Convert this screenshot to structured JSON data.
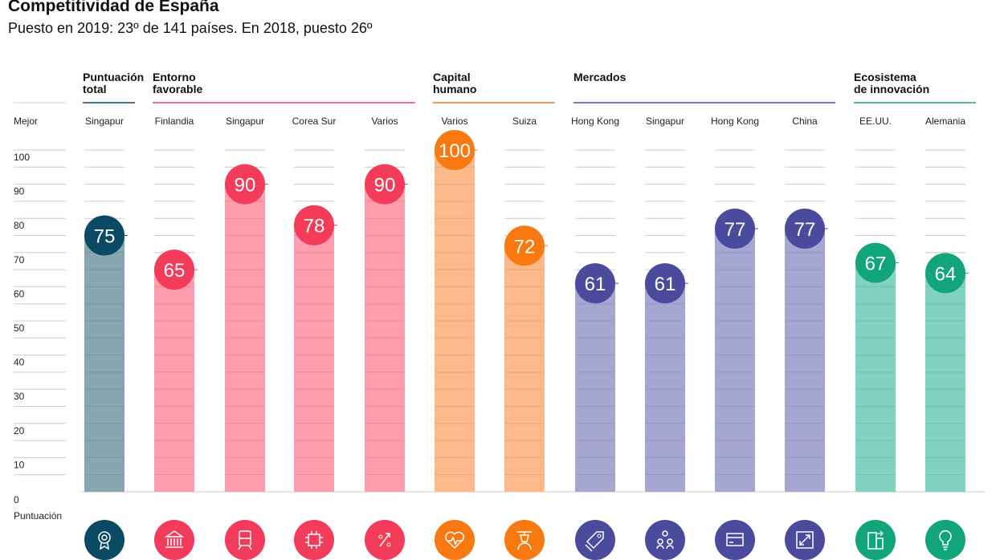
{
  "chart_data": {
    "type": "bar",
    "title": "Competitividad de España",
    "subtitle": "Puesto en 2019: 23º de 141 países. En 2018, puesto 26º",
    "ylabel_top": "Mejor",
    "ylabel_bottom": "Puntuación",
    "ylim": [
      0,
      100
    ],
    "yticks": [
      0,
      10,
      20,
      30,
      40,
      50,
      60,
      70,
      80,
      90,
      100
    ],
    "groups": [
      {
        "label": [
          "Puntuación",
          "total"
        ],
        "color": "#0b4a63",
        "bar_color": "#87a7b2",
        "count": 1
      },
      {
        "label": [
          "Entorno",
          "favorable"
        ],
        "color": "#f23c5a",
        "bar_color": "#ff9daf",
        "count": 4
      },
      {
        "label": [
          "Capital",
          "humano"
        ],
        "color": "#f7790f",
        "bar_color": "#fdb98a",
        "count": 2
      },
      {
        "label": [
          "Mercados"
        ],
        "color": "#4b4b9e",
        "bar_color": "#a6a6d3",
        "count": 4
      },
      {
        "label": [
          "Ecosistema",
          "de innovación"
        ],
        "color": "#13a57a",
        "bar_color": "#80d3c0",
        "count": 2
      }
    ],
    "categories": [
      "Singapur",
      "Finlandia",
      "Singapur",
      "Corea Sur",
      "Varios",
      "Varios",
      "Suiza",
      "Hong Kong",
      "Singapur",
      "Hong Kong",
      "China",
      "EE.UU.",
      "Alemania"
    ],
    "values": [
      75,
      65,
      90,
      78,
      90,
      100,
      72,
      61,
      61,
      77,
      77,
      67,
      64
    ],
    "icons": [
      "award-icon",
      "institution-icon",
      "train-icon",
      "chip-icon",
      "percent-icon",
      "heart-pulse-icon",
      "graduate-icon",
      "price-tag-icon",
      "people-icon",
      "credit-card-icon",
      "expand-icon",
      "buildings-icon",
      "lightbulb-icon"
    ]
  }
}
